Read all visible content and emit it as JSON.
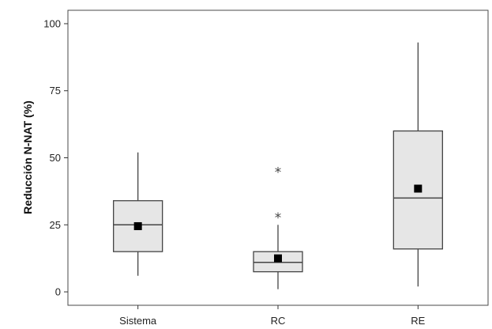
{
  "chart_data": {
    "type": "boxplot",
    "title": "",
    "xlabel": "",
    "ylabel": "Reducción N-NAT (%)",
    "ylim": [
      -5,
      105
    ],
    "yticks": [
      0,
      25,
      50,
      75,
      100
    ],
    "categories": [
      "Sistema",
      "RC",
      "RE"
    ],
    "boxes": [
      {
        "category": "Sistema",
        "whisker_low": 6,
        "q1": 15,
        "median": 25,
        "q3": 34,
        "whisker_high": 52,
        "mean": 24.5,
        "outliers": []
      },
      {
        "category": "RC",
        "whisker_low": 1,
        "q1": 7.5,
        "median": 11,
        "q3": 15,
        "whisker_high": 25,
        "mean": 12.5,
        "outliers": [
          28,
          45
        ]
      },
      {
        "category": "RE",
        "whisker_low": 2,
        "q1": 16,
        "median": 35,
        "q3": 60,
        "whisker_high": 93,
        "mean": 38.5,
        "outliers": []
      }
    ],
    "grid": false,
    "legend": "none",
    "colors": {
      "box_fill": "#e6e6e6",
      "box_stroke": "#444444",
      "mean_marker": "#000000",
      "axis": "#333333"
    }
  }
}
